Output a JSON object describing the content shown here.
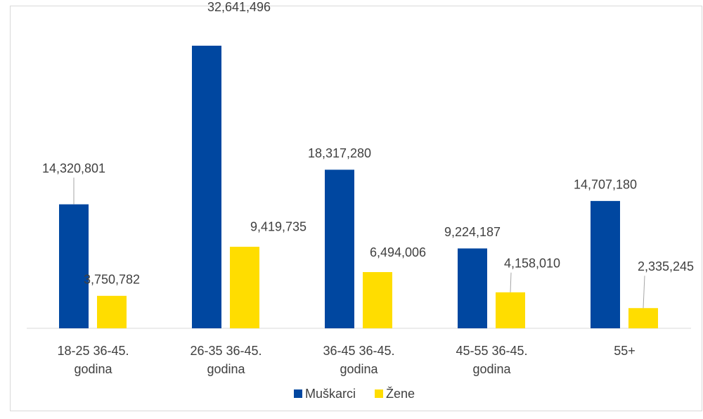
{
  "chart_data": {
    "type": "bar",
    "categories": [
      "18-25 36-45. godina",
      "26-35 36-45. godina",
      "36-45 36-45. godina",
      "45-55 36-45. godina",
      "55+"
    ],
    "series": [
      {
        "name": "Muškarci",
        "color": "#0047a0",
        "values": [
          14320801,
          32641496,
          18317280,
          9224187,
          14707180
        ],
        "value_labels": [
          "14,320,801",
          "32,641,496",
          "18,317,280",
          "9,224,187",
          "14,707,180"
        ]
      },
      {
        "name": "Žene",
        "color": "#ffdd00",
        "values": [
          3750782,
          9419735,
          6494006,
          4158010,
          2335245
        ],
        "value_labels": [
          "3,750,782",
          "9,419,735",
          "6,494,006",
          "4,158,010",
          "2,335,245"
        ]
      }
    ]
  }
}
